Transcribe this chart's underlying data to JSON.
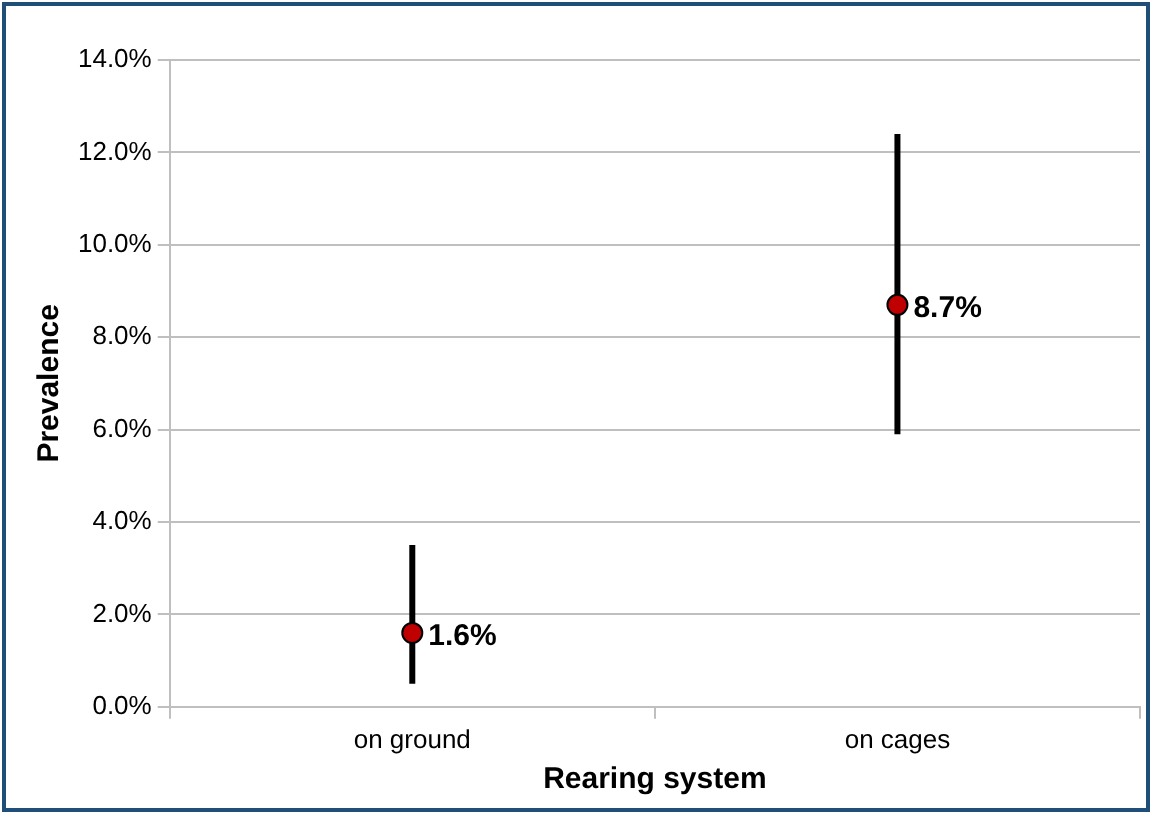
{
  "chart_data": {
    "type": "scatter",
    "xlabel": "Rearing system",
    "ylabel": "Prevalence",
    "categories": [
      "on ground",
      "on cages"
    ],
    "series": [
      {
        "color": "#c00000",
        "values": [
          1.6,
          8.7
        ],
        "errors": [
          [
            0.5,
            3.5
          ],
          [
            5.9,
            12.4
          ]
        ]
      }
    ],
    "value_labels": [
      "1.6%",
      "8.7%"
    ],
    "ylim": [
      0,
      14
    ],
    "yticks": [
      {
        "value": 0,
        "label": "0.0%"
      },
      {
        "value": 2,
        "label": "2.0%"
      },
      {
        "value": 4,
        "label": "4.0%"
      },
      {
        "value": 6,
        "label": "6.0%"
      },
      {
        "value": 8,
        "label": "8.0%"
      },
      {
        "value": 10,
        "label": "10.0%"
      },
      {
        "value": 12,
        "label": "12.0%"
      },
      {
        "value": 14,
        "label": "14.0%"
      }
    ],
    "grid": "y",
    "legend": false,
    "marker": "circle"
  }
}
